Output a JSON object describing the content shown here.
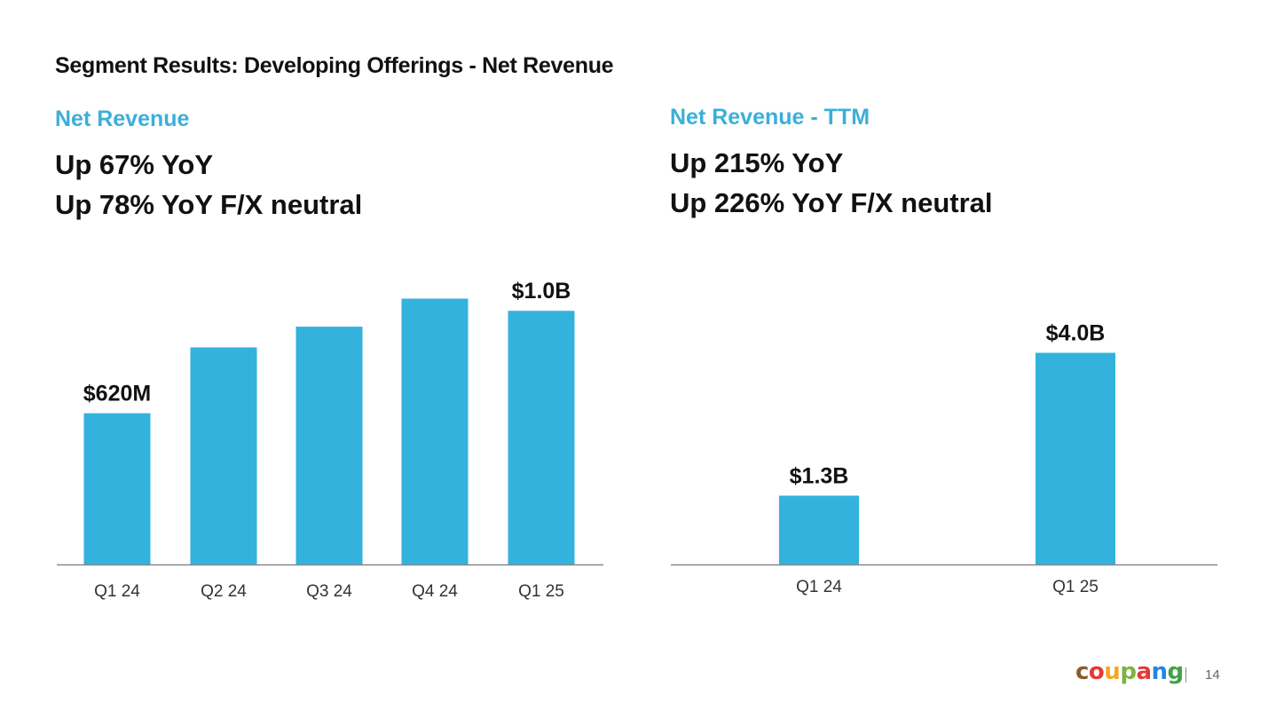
{
  "page": {
    "title": "Segment Results: Developing Offerings - Net Revenue",
    "page_number": "14"
  },
  "left_panel": {
    "subtitle": "Net Revenue",
    "headline_1": "Up 67% YoY",
    "headline_2": "Up 78% YoY F/X neutral"
  },
  "right_panel": {
    "subtitle": "Net Revenue - TTM",
    "headline_1": "Up 215% YoY",
    "headline_2": "Up 226% YoY F/X neutral"
  },
  "brand": {
    "logo_text": "coupang",
    "logo_colors": [
      "#8B5A2B",
      "#E53935",
      "#F5A623",
      "#7CB342",
      "#E53935",
      "#1E88E5",
      "#43A047"
    ]
  },
  "colors": {
    "accent": "#3BAFD9",
    "bar": "#33B2DD",
    "text": "#111111",
    "axis": "#888888"
  },
  "chart_data": [
    {
      "type": "bar",
      "categories": [
        "Q1 24",
        "Q2 24",
        "Q3 24",
        "Q4 24",
        "Q1 25"
      ],
      "values": [
        620,
        890,
        975,
        1090,
        1040
      ],
      "unit": "$M",
      "data_labels": [
        "$620M",
        "",
        "",
        "",
        "$1.0B"
      ],
      "ylim": [
        0,
        1150
      ],
      "grid": false,
      "legend": "none"
    },
    {
      "type": "bar",
      "categories": [
        "Q1 24",
        "Q1 25"
      ],
      "values": [
        1.3,
        4.0
      ],
      "unit": "$B",
      "data_labels": [
        "$1.3B",
        "$4.0B"
      ],
      "ylim": [
        0,
        5.3
      ],
      "grid": false,
      "legend": "none"
    }
  ]
}
